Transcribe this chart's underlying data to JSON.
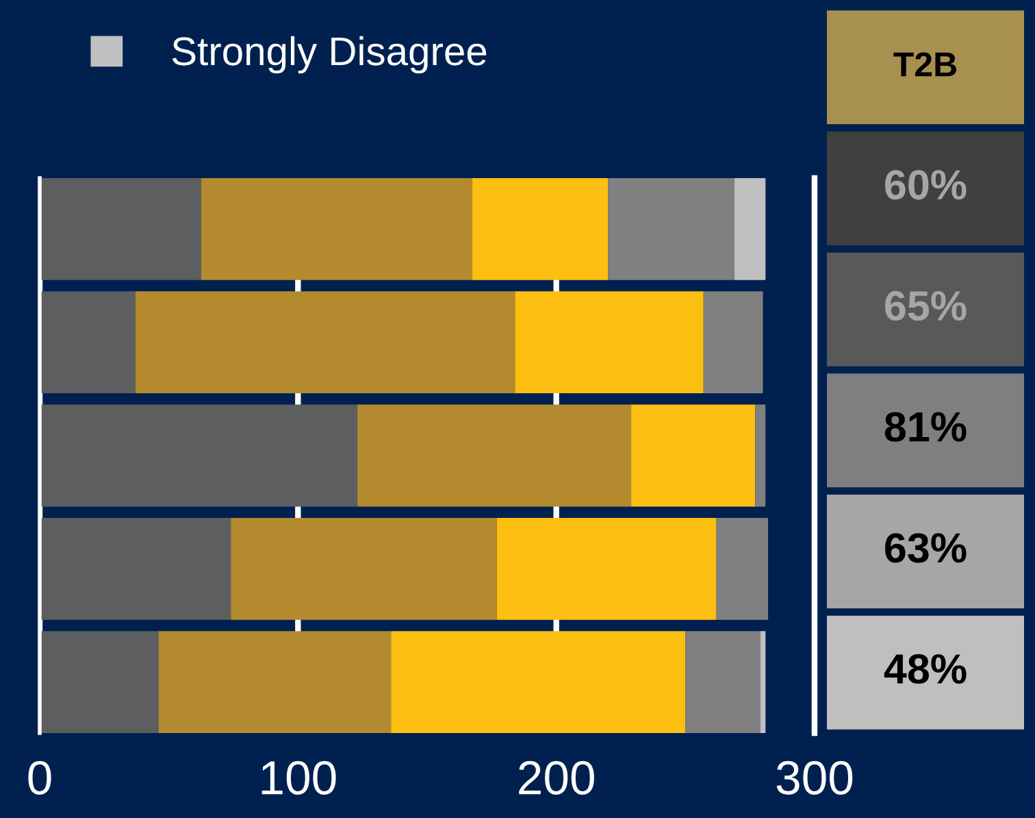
{
  "chart_data": [
    {
      "type": "bar",
      "orientation": "horizontal",
      "stacked": true,
      "categories": [
        null,
        null,
        null,
        null,
        null
      ],
      "series": [
        {
          "color": "#5d5e60",
          "values": [
            62.5,
            37,
            123,
            74,
            46
          ]
        },
        {
          "color": "#b38b2e",
          "values": [
            105,
            147,
            106,
            103,
            90
          ]
        },
        {
          "color": "#fdbf11",
          "values": [
            52.5,
            73,
            48,
            85,
            114
          ]
        },
        {
          "color": "#808080",
          "values": [
            49,
            23,
            4,
            20,
            29
          ]
        },
        {
          "name": "Strongly Disagree",
          "color": "#c0c0c1",
          "values": [
            12,
            0,
            0,
            0,
            2
          ]
        }
      ],
      "xlim": [
        0,
        300
      ],
      "xticks": [
        0,
        100,
        200,
        300
      ],
      "grid": "x",
      "legend": "top left",
      "tick_labels": "x"
    },
    {
      "type": "other",
      "title": "T2B",
      "annotations": [
        "60%",
        "65%",
        "81%",
        "63%",
        "48%"
      ],
      "colors": [
        "#a89050",
        "#404040",
        "#595959",
        "#7f7f7f",
        "#a6a6a6",
        "#bfbfbf"
      ]
    }
  ]
}
